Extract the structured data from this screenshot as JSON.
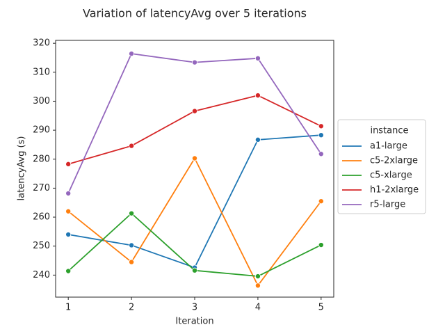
{
  "chart_data": {
    "type": "line",
    "title": "Variation of latencyAvg over 5 iterations",
    "xlabel": "Iteration",
    "ylabel": "latencyAvg (s)",
    "x": [
      1,
      2,
      3,
      4,
      5
    ],
    "xlim": [
      0.8,
      5.2
    ],
    "ylim": [
      232.4,
      321.0
    ],
    "yticks": [
      240,
      250,
      260,
      270,
      280,
      290,
      300,
      310,
      320
    ],
    "grid": false,
    "legend": {
      "title": "instance",
      "placement": "center-right, outside plot"
    },
    "series": [
      {
        "name": "a1-large",
        "color": "#1f77b4",
        "values": [
          254.0,
          250.3,
          242.6,
          286.7,
          288.3
        ]
      },
      {
        "name": "c5-2xlarge",
        "color": "#ff7f0e",
        "values": [
          262.0,
          244.5,
          280.3,
          236.4,
          265.5
        ]
      },
      {
        "name": "c5-xlarge",
        "color": "#2ca02c",
        "values": [
          241.4,
          261.3,
          241.6,
          239.6,
          250.4
        ]
      },
      {
        "name": "h1-2xlarge",
        "color": "#d62728",
        "values": [
          278.3,
          284.6,
          296.6,
          302.0,
          291.4
        ]
      },
      {
        "name": "r5-large",
        "color": "#9467bd",
        "values": [
          268.2,
          316.4,
          313.4,
          314.8,
          281.8
        ]
      }
    ]
  }
}
